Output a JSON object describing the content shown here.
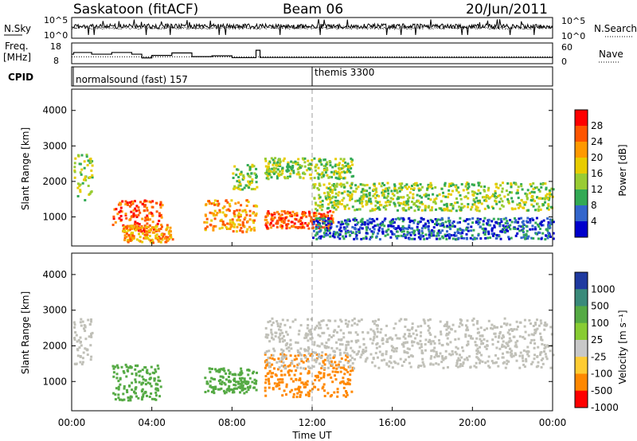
{
  "header": {
    "station": "Saskatoon (fitACF)",
    "beam": "Beam 06",
    "date": "20/Jun/2011"
  },
  "chart_data": [
    {
      "type": "line",
      "panel": "noise",
      "left_label": "N.Sky",
      "right_label": "N.Search",
      "left_ticks": [
        "10^5",
        "10^0"
      ],
      "right_ticks": [
        "10^5",
        "10^0"
      ],
      "series_styles": {
        "N.Sky": "solid",
        "N.Search": "dotted"
      }
    },
    {
      "type": "line",
      "panel": "frequency",
      "left_label": "Freq. [MHz]",
      "right_label": "Nave",
      "left_ticks": [
        "18",
        "8"
      ],
      "right_ticks": [
        "60",
        "0"
      ],
      "ylim_freq": [
        8,
        18
      ],
      "ylim_nave": [
        0,
        60
      ],
      "freq_steps_hours": [
        [
          0,
          12.6
        ],
        [
          0.1,
          13.4
        ],
        [
          1.0,
          12.6
        ],
        [
          2.0,
          13.4
        ],
        [
          3.0,
          12.6
        ],
        [
          3.5,
          10.8
        ],
        [
          4.0,
          12.0
        ],
        [
          5.0,
          13.2
        ],
        [
          6.0,
          11.4
        ],
        [
          7.0,
          11.8
        ],
        [
          8.0,
          10.9
        ],
        [
          9.2,
          14.5
        ],
        [
          9.4,
          11.0
        ],
        [
          12.0,
          11.0
        ],
        [
          24.0,
          11.0
        ]
      ],
      "nave_level": 20
    },
    {
      "type": "table",
      "panel": "cpid",
      "label": "CPID",
      "segments": [
        {
          "text": "normalsound (fast) 157",
          "start_hour": 0,
          "end_hour": 12
        },
        {
          "text": "themis 3300",
          "start_hour": 12,
          "end_hour": 24
        }
      ]
    },
    {
      "type": "heatmap",
      "panel": "power",
      "ylabel": "Slant Range [km]",
      "yticks": [
        1000,
        2000,
        3000,
        4000
      ],
      "ylim": [
        180,
        4600
      ],
      "colorbar_label": "Power [dB]",
      "colorbar_ticks": [
        "28",
        "24",
        "20",
        "16",
        "12",
        "8",
        "4"
      ],
      "colorbar_colors": [
        "#ff0000",
        "#ff5500",
        "#ff9900",
        "#e8cc00",
        "#99cc33",
        "#33aa55",
        "#3366cc",
        "#0000cc"
      ],
      "blobs": [
        {
          "t0": 0.0,
          "t1": 1.0,
          "r0": 1500,
          "r1": 2800,
          "level": 3
        },
        {
          "t0": 2.0,
          "t1": 4.5,
          "r0": 600,
          "r1": 1500,
          "level": 6
        },
        {
          "t0": 2.5,
          "t1": 5.0,
          "r0": 300,
          "r1": 800,
          "level": 5
        },
        {
          "t0": 6.5,
          "t1": 9.2,
          "r0": 600,
          "r1": 1500,
          "level": 5
        },
        {
          "t0": 8.0,
          "t1": 9.2,
          "r0": 1800,
          "r1": 2500,
          "level": 3
        },
        {
          "t0": 9.6,
          "t1": 13.0,
          "r0": 700,
          "r1": 1200,
          "level": 6
        },
        {
          "t0": 9.6,
          "t1": 14.0,
          "r0": 2100,
          "r1": 2700,
          "level": 3
        },
        {
          "t0": 12.0,
          "t1": 24.0,
          "r0": 1200,
          "r1": 2000,
          "level": 3
        },
        {
          "t0": 12.0,
          "t1": 24.0,
          "r0": 400,
          "r1": 1000,
          "level": 1
        }
      ]
    },
    {
      "type": "heatmap",
      "panel": "velocity",
      "ylabel": "Slant Range [km]",
      "yticks": [
        1000,
        2000,
        3000,
        4000
      ],
      "ylim": [
        180,
        4600
      ],
      "xlabel": "Time UT",
      "xticks": [
        "00:00",
        "04:00",
        "08:00",
        "12:00",
        "16:00",
        "20:00",
        "00:00"
      ],
      "xlim_hours": [
        0,
        24
      ],
      "colorbar_label": "Velocity [m s⁻¹]",
      "colorbar_ticks": [
        "1000",
        "500",
        "100",
        "25",
        "-25",
        "-100",
        "-500",
        "-1000"
      ],
      "colorbar_colors": [
        "#1f3aa0",
        "#3a8a7a",
        "#55aa44",
        "#88cc33",
        "#c8c8c8",
        "#ffcc33",
        "#ff8800",
        "#ff0000"
      ],
      "blobs": [
        {
          "t0": 0.0,
          "t1": 1.0,
          "r0": 1500,
          "r1": 2800,
          "class": "ground"
        },
        {
          "t0": 2.0,
          "t1": 4.5,
          "r0": 500,
          "r1": 1500,
          "class": "green"
        },
        {
          "t0": 6.5,
          "t1": 9.2,
          "r0": 700,
          "r1": 1400,
          "class": "green"
        },
        {
          "t0": 9.6,
          "t1": 14.0,
          "r0": 600,
          "r1": 1800,
          "class": "orange"
        },
        {
          "t0": 9.6,
          "t1": 24.0,
          "r0": 1400,
          "r1": 2800,
          "class": "ground"
        }
      ]
    }
  ]
}
